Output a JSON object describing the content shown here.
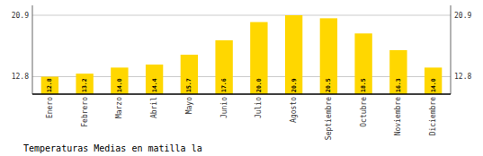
{
  "chart_data": {
    "type": "bar",
    "title": "Temperaturas Medias en matilla la",
    "categories": [
      "Enero",
      "Febrero",
      "Marzo",
      "Abril",
      "Mayo",
      "Junio",
      "Julio",
      "Agosto",
      "Septiembre",
      "Octubre",
      "Noviembre",
      "Diciembre"
    ],
    "values": [
      12.8,
      13.2,
      14.0,
      14.4,
      15.7,
      17.6,
      20.0,
      20.9,
      20.5,
      18.5,
      16.3,
      14.0
    ],
    "value_labels": [
      "12.8",
      "13.2",
      "14.0",
      "14.4",
      "15.7",
      "17.6",
      "20.0",
      "20.9",
      "20.5",
      "18.5",
      "16.3",
      "14.0"
    ],
    "data_labels": true,
    "color": "#FFD700",
    "ylim": [
      10.5,
      22.2
    ],
    "yticks": [
      12.8,
      20.9
    ],
    "y2lim": [
      10.5,
      22.2
    ],
    "y2ticks": [
      12.8,
      20.9
    ],
    "grid": true
  }
}
